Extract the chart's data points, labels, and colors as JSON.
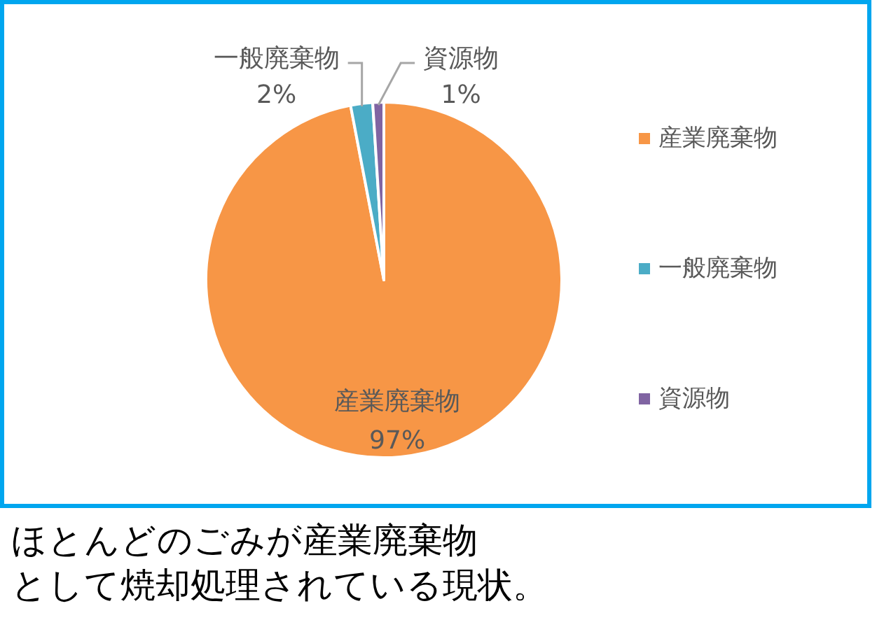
{
  "chart_data": {
    "type": "pie",
    "categories": [
      "産業廃棄物",
      "一般廃棄物",
      "資源物"
    ],
    "values": [
      97,
      2,
      1
    ],
    "colors": [
      "#f79646",
      "#4bacc6",
      "#8064a2"
    ],
    "value_labels": [
      "97%",
      "2%",
      "1%"
    ],
    "legend": "right",
    "annotations": [
      "ほとんどのごみが産業廃棄物として焼却処理されている現状。"
    ]
  }
}
